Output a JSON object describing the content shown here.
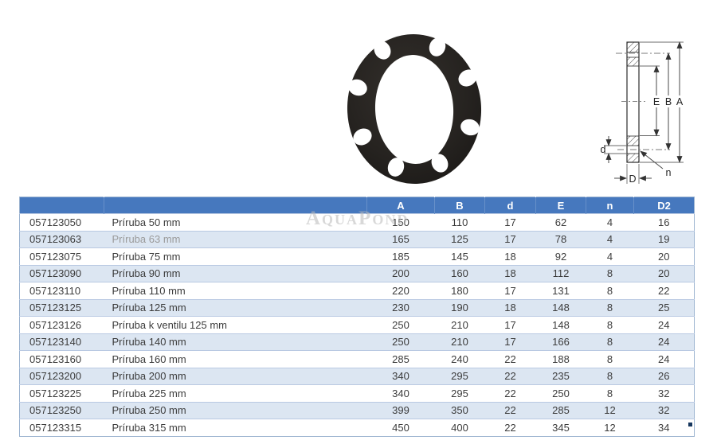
{
  "watermark": "AquaPond",
  "photo": {
    "description": "black PE flange with 8 bolt holes",
    "ring_color": "#26231f"
  },
  "diagram": {
    "labels": {
      "A": "A",
      "B": "B",
      "E": "E",
      "d": "d",
      "D": "D",
      "n": "n"
    }
  },
  "table": {
    "header_bg": "#4678be",
    "alt_row_bg": "#dce6f2",
    "col_headers": [
      "",
      "",
      "A",
      "B",
      "d",
      "E",
      "n",
      "D2"
    ],
    "rows": [
      {
        "code": "057123050",
        "name": "Príruba 50 mm",
        "A": "150",
        "B": "110",
        "d": "17",
        "E": "62",
        "n": "4",
        "D2": "16"
      },
      {
        "code": "057123063",
        "name": "Príruba 63 mm",
        "muted": true,
        "A": "165",
        "B": "125",
        "d": "17",
        "E": "78",
        "n": "4",
        "D2": "19"
      },
      {
        "code": "057123075",
        "name": "Príruba 75 mm",
        "A": "185",
        "B": "145",
        "d": "18",
        "E": "92",
        "n": "4",
        "D2": "20"
      },
      {
        "code": "057123090",
        "name": "Príruba 90 mm",
        "A": "200",
        "B": "160",
        "d": "18",
        "E": "112",
        "n": "8",
        "D2": "20"
      },
      {
        "code": "057123110",
        "name": "Príruba 110 mm",
        "A": "220",
        "B": "180",
        "d": "17",
        "E": "131",
        "n": "8",
        "D2": "22"
      },
      {
        "code": "057123125",
        "name": "Príruba 125 mm",
        "A": "230",
        "B": "190",
        "d": "18",
        "E": "148",
        "n": "8",
        "D2": "25"
      },
      {
        "code": "057123126",
        "name": "Príruba k ventilu 125 mm",
        "A": "250",
        "B": "210",
        "d": "17",
        "E": "148",
        "n": "8",
        "D2": "24"
      },
      {
        "code": "057123140",
        "name": "Príruba 140 mm",
        "A": "250",
        "B": "210",
        "d": "17",
        "E": "166",
        "n": "8",
        "D2": "24"
      },
      {
        "code": "057123160",
        "name": "Príruba 160 mm",
        "A": "285",
        "B": "240",
        "d": "22",
        "E": "188",
        "n": "8",
        "D2": "24"
      },
      {
        "code": "057123200",
        "name": "Príruba 200 mm",
        "A": "340",
        "B": "295",
        "d": "22",
        "E": "235",
        "n": "8",
        "D2": "26"
      },
      {
        "code": "057123225",
        "name": "Príruba 225 mm",
        "A": "340",
        "B": "295",
        "d": "22",
        "E": "250",
        "n": "8",
        "D2": "32"
      },
      {
        "code": "057123250",
        "name": "Príruba 250 mm",
        "A": "399",
        "B": "350",
        "d": "22",
        "E": "285",
        "n": "12",
        "D2": "32"
      },
      {
        "code": "057123315",
        "name": "Príruba 315 mm",
        "A": "450",
        "B": "400",
        "d": "22",
        "E": "345",
        "n": "12",
        "D2": "34"
      }
    ]
  }
}
